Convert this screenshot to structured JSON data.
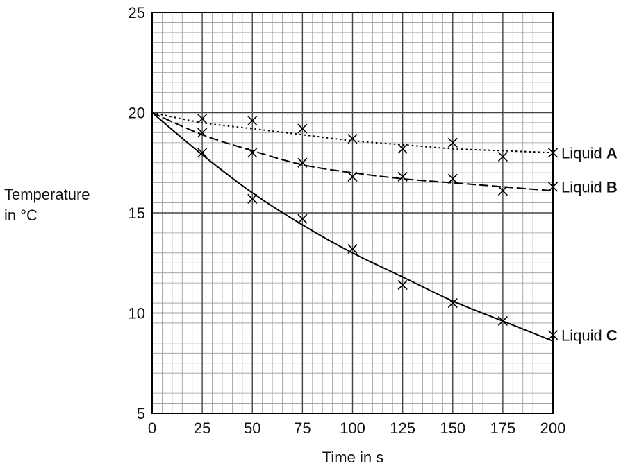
{
  "chart_data": {
    "type": "scatter",
    "xlabel": "Time in s",
    "ylabel_lines": [
      "Temperature",
      "in °C"
    ],
    "xlim": [
      0,
      200
    ],
    "ylim": [
      5,
      25
    ],
    "x_ticks": [
      0,
      25,
      50,
      75,
      100,
      125,
      150,
      175,
      200
    ],
    "y_ticks": [
      5,
      10,
      15,
      20,
      25
    ],
    "grid": true,
    "x_minor_step": 5,
    "y_minor_step": 0.5,
    "series": [
      {
        "name": "Liquid A",
        "name_prefix": "Liquid ",
        "name_letter": "A",
        "line_style": "dotted",
        "x": [
          25,
          50,
          75,
          100,
          125,
          150,
          175,
          200
        ],
        "y": [
          19.7,
          19.6,
          19.2,
          18.7,
          18.2,
          18.5,
          17.8,
          18.0
        ],
        "fit_x": [
          0,
          25,
          50,
          75,
          100,
          125,
          150,
          175,
          200
        ],
        "fit_y": [
          20.0,
          19.5,
          19.2,
          18.9,
          18.6,
          18.4,
          18.2,
          18.1,
          18.0
        ]
      },
      {
        "name": "Liquid B",
        "name_prefix": "Liquid ",
        "name_letter": "B",
        "line_style": "dashed",
        "x": [
          25,
          50,
          75,
          100,
          125,
          150,
          175,
          200
        ],
        "y": [
          19.0,
          18.0,
          17.5,
          16.8,
          16.8,
          16.7,
          16.1,
          16.3
        ],
        "fit_x": [
          0,
          25,
          50,
          75,
          100,
          125,
          150,
          175,
          200
        ],
        "fit_y": [
          20.0,
          18.9,
          18.1,
          17.4,
          17.0,
          16.7,
          16.5,
          16.3,
          16.1
        ]
      },
      {
        "name": "Liquid C",
        "name_prefix": "Liquid ",
        "name_letter": "C",
        "line_style": "solid",
        "x": [
          25,
          50,
          75,
          100,
          125,
          150,
          175,
          200
        ],
        "y": [
          18.0,
          15.7,
          14.7,
          13.2,
          11.4,
          10.5,
          9.6,
          8.9
        ],
        "fit_x": [
          0,
          25,
          50,
          75,
          100,
          125,
          150,
          175,
          200
        ],
        "fit_y": [
          20.0,
          17.9,
          16.0,
          14.4,
          13.0,
          11.8,
          10.6,
          9.6,
          8.6
        ]
      }
    ]
  }
}
